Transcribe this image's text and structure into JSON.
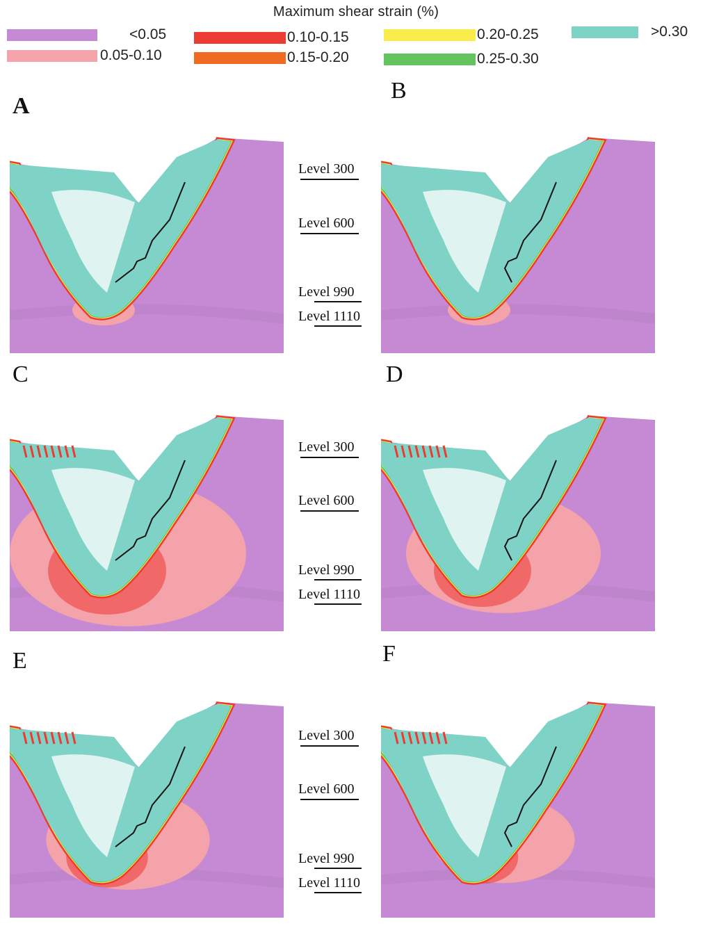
{
  "legend": {
    "title": "Maximum shear strain (%)",
    "items": [
      {
        "label": "<0.05",
        "color": "#c58ad3"
      },
      {
        "label": "0.05-0.10",
        "color": "#f4a3aa"
      },
      {
        "label": "0.10-0.15",
        "color": "#ec3b32"
      },
      {
        "label": "0.15-0.20",
        "color": "#f06a22"
      },
      {
        "label": "0.20-0.25",
        "color": "#f7ec4a"
      },
      {
        "label": "0.25-0.30",
        "color": "#63c35d"
      },
      {
        "label": ">0.30",
        "color": "#7fd3c6"
      }
    ]
  },
  "panels": [
    {
      "letter": "A",
      "levels": [
        "Level 300",
        "Level 600",
        "Level 990",
        "Level 1110"
      ]
    },
    {
      "letter": "B"
    },
    {
      "letter": "C",
      "levels": [
        "Level 300",
        "Level 600",
        "Level 990",
        "Level 1110"
      ]
    },
    {
      "letter": "D"
    },
    {
      "letter": "E",
      "levels": [
        "Level 300",
        "Level 600",
        "Level 990",
        "Level 1110"
      ]
    },
    {
      "letter": "F"
    }
  ],
  "colors": {
    "rock": "#c58ad3",
    "pale_zone": "#f4a3aa",
    "high_strain": "#7fd3c6",
    "red": "#ec3b32",
    "yellow": "#f7ec4a",
    "green": "#63c35d",
    "fault_line": "#111111"
  }
}
